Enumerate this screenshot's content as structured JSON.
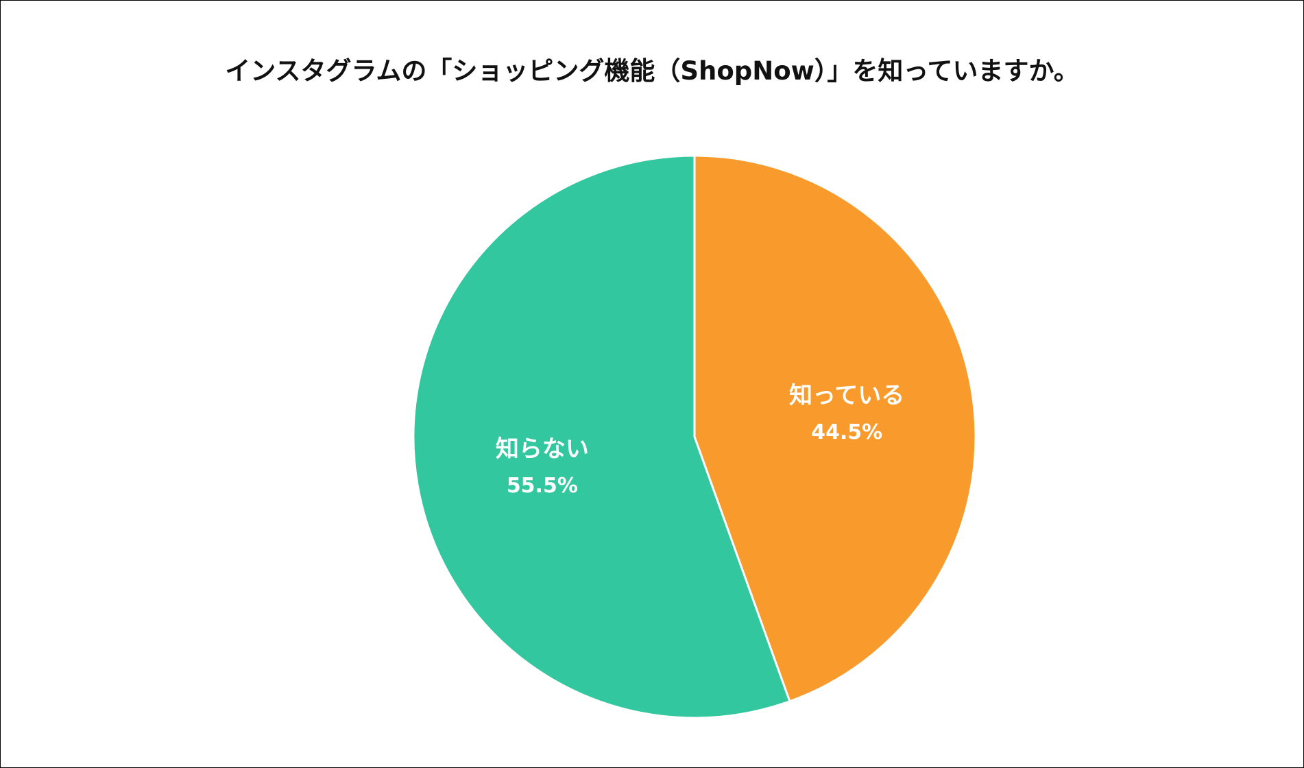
{
  "chart_data": {
    "type": "pie",
    "title": "インスタグラムの「ショッピング機能（ShopNow）」を知っていますか。",
    "slices": [
      {
        "label": "知っている",
        "value": 44.5,
        "display": "44.5%",
        "color": "#f99a2c"
      },
      {
        "label": "知らない",
        "value": 55.5,
        "display": "55.5%",
        "color": "#32c79e"
      }
    ],
    "start_angle": "12 o'clock",
    "direction": "clockwise",
    "legend": "none"
  }
}
